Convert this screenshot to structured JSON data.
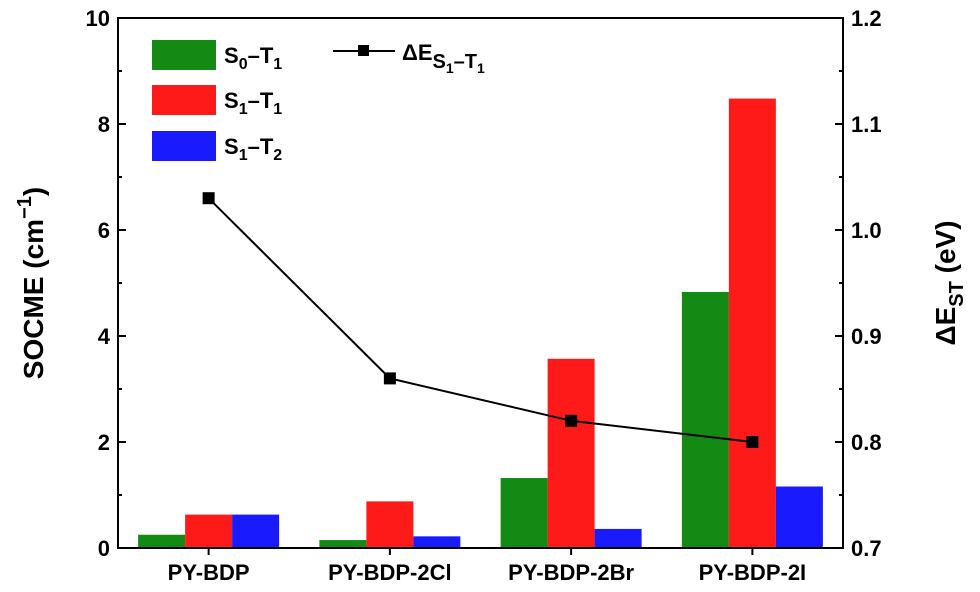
{
  "chart_data": {
    "type": "bar",
    "categories": [
      "PY-BDP",
      "PY-BDP-2Cl",
      "PY-BDP-2Br",
      "PY-BDP-2I"
    ],
    "series": [
      {
        "name": "S0–T1",
        "color": "#138a13",
        "values": [
          0.25,
          0.15,
          1.32,
          4.83
        ]
      },
      {
        "name": "S1–T1",
        "color": "#ff1a1a",
        "values": [
          0.63,
          0.88,
          3.57,
          8.48
        ]
      },
      {
        "name": "S1–T2",
        "color": "#1a1aff",
        "values": [
          0.63,
          0.22,
          0.36,
          1.16
        ]
      }
    ],
    "line_series": {
      "name": "ΔE S1–T1",
      "color": "#000000",
      "marker": "square",
      "axis": "right",
      "values": [
        1.03,
        0.86,
        0.82,
        0.8
      ]
    },
    "ylabel": "SOCME (cm⁻¹)",
    "ylabel_parts": {
      "main": "SOCME (cm",
      "sup": "−1",
      "end": ")"
    },
    "y2label": "ΔE ST (eV)",
    "y2label_parts": {
      "main": "ΔE",
      "sub": "ST",
      "end": " (eV)"
    },
    "ylim": [
      0,
      10
    ],
    "y2lim": [
      0.7,
      1.2
    ],
    "yticks": [
      "0",
      "2",
      "4",
      "6",
      "8",
      "10"
    ],
    "y2ticks": [
      "0.7",
      "0.8",
      "0.9",
      "1.0",
      "1.1",
      "1.2"
    ],
    "legend": {
      "placement": "top-left",
      "bars": [
        {
          "base": "S",
          "s1": "0",
          "mid": "–T",
          "s2": "1"
        },
        {
          "base": "S",
          "s1": "1",
          "mid": "–T",
          "s2": "1"
        },
        {
          "base": "S",
          "s1": "1",
          "mid": "–T",
          "s2": "2"
        }
      ],
      "line": {
        "base": "ΔE",
        "s1": "S",
        "s1b": "1",
        "mid": "–T",
        "s2": "1"
      }
    }
  }
}
